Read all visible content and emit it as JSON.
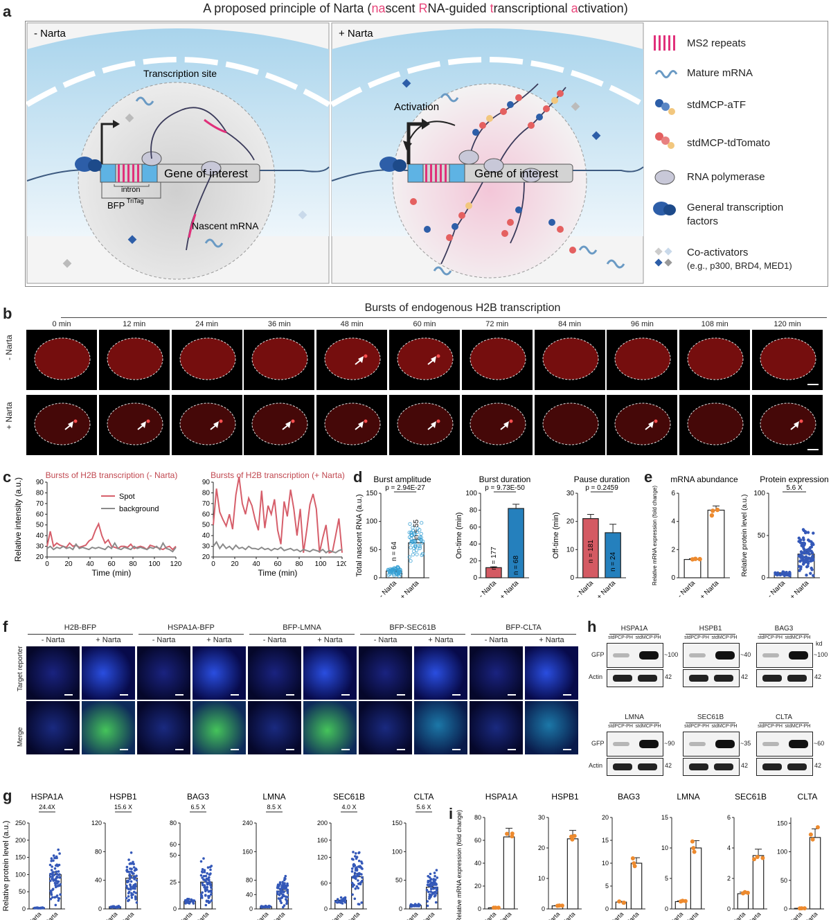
{
  "figure_title": {
    "prefix": "A proposed principle of Narta (",
    "parts": [
      {
        "text": "na",
        "color": "#e8457a"
      },
      {
        "text": "scent ",
        "color": "#222222"
      },
      {
        "text": "R",
        "color": "#e8457a"
      },
      {
        "text": "NA-guided ",
        "color": "#222222"
      },
      {
        "text": "t",
        "color": "#e8457a"
      },
      {
        "text": "ranscriptional ",
        "color": "#222222"
      },
      {
        "text": "a",
        "color": "#e8457a"
      },
      {
        "text": "ctivation)",
        "color": "#222222"
      }
    ]
  },
  "panel_labels": {
    "a": "a",
    "b": "b",
    "c": "c",
    "d": "d",
    "e": "e",
    "f": "f",
    "g": "g",
    "h": "h",
    "i": "i"
  },
  "panel_a": {
    "left": {
      "title": "- Narta",
      "transcription_site": "Transcription site",
      "gene": "Gene of interest",
      "intron": "intron",
      "bfp": "BFP",
      "bfp_sup": "TriTag",
      "nascent": "Nascent mRNA"
    },
    "right": {
      "title": "+ Narta",
      "activation": "Activation",
      "gene": "Gene of interest"
    },
    "legend": [
      {
        "icon": "ms2-icon",
        "label": "MS2 repeats"
      },
      {
        "icon": "mature-mrna-icon",
        "label": "Mature mRNA"
      },
      {
        "icon": "stdmcp-atf-icon",
        "label": "stdMCP-aTF"
      },
      {
        "icon": "stdmcp-tdtomato-icon",
        "label": "stdMCP-tdTomato"
      },
      {
        "icon": "rna-polymerase-icon",
        "label": "RNA polymerase"
      },
      {
        "icon": "gtf-icon",
        "label": "General transcription factors"
      },
      {
        "icon": "coactivator-icon",
        "label": "Co-activators",
        "sub": "(e.g., p300, BRD4, MED1)"
      }
    ],
    "colors": {
      "cytoplasm": "#b8dcef",
      "nucleus": "#e6e6e6",
      "ms2": "#e0307a",
      "gene": "#d0d0d0",
      "bfp": "#5eb3e4"
    }
  },
  "panel_b": {
    "title": "Bursts of endogenous H2B transcription",
    "times": [
      "0 min",
      "12 min",
      "24 min",
      "36 min",
      "48 min",
      "60 min",
      "72 min",
      "84 min",
      "96 min",
      "108 min",
      "120 min"
    ],
    "rows": [
      "- Narta",
      "+ Narta"
    ]
  },
  "panel_c": {
    "charts": [
      {
        "title": "Bursts of H2B transcription (- Narta)"
      },
      {
        "title": "Bursts of H2B transcription (+ Narta)"
      }
    ],
    "ylabel": "Relative intensity (a.u.)",
    "xlabel": "Time (min)",
    "legend": [
      "Spot",
      "background"
    ],
    "xticks": [
      "0",
      "20",
      "40",
      "60",
      "80",
      "100",
      "120"
    ],
    "yticks": [
      "20",
      "30",
      "40",
      "50",
      "60",
      "70",
      "80",
      "90"
    ]
  },
  "panel_d": {
    "charts": [
      {
        "title": "Burst amplitude",
        "ylabel": "Total nascent RNA  (a.u.)",
        "p": "p = 2.94E-27",
        "n": [
          "n = 64",
          "n = 55"
        ],
        "yticks": [
          "0",
          "50",
          "100",
          "150"
        ]
      },
      {
        "title": "Burst duration",
        "ylabel": "On-time (min)",
        "p": "p = 9.73E-50",
        "n": [
          "n = 177",
          "n = 68"
        ],
        "yticks": [
          "0",
          "20",
          "40",
          "60",
          "80",
          "100"
        ]
      },
      {
        "title": "Pause duration",
        "ylabel": "Off-time (min)",
        "p": "p = 0.2459",
        "n": [
          "n = 181",
          "n = 24"
        ],
        "yticks": [
          "0",
          "10",
          "20",
          "30"
        ]
      }
    ],
    "xcats": [
      "- Narta",
      "+ Narta"
    ]
  },
  "panel_e": {
    "charts": [
      {
        "title": "mRNA abundance",
        "ylabel": "Relative mRNA expression (fold change)",
        "yticks": [
          "0",
          "2",
          "4",
          "6"
        ]
      },
      {
        "title": "Protein expression",
        "ylabel": "Relative protein level (a.u.)",
        "fold": "5.6 X",
        "yticks": [
          "0",
          "50",
          "100"
        ]
      }
    ],
    "xcats": [
      "- Narta",
      "+ Narta"
    ]
  },
  "panel_f": {
    "groups": [
      "H2B-BFP",
      "HSPA1A-BFP",
      "BFP-LMNA",
      "BFP-SEC61B",
      "BFP-CLTA"
    ],
    "conds": [
      "- Narta",
      "+ Narta"
    ],
    "rows": [
      "Target reporter",
      "Merge"
    ]
  },
  "panel_h": {
    "blots": [
      {
        "gene": "HSPA1A",
        "kd": "~100"
      },
      {
        "gene": "HSPB1",
        "kd": "~40"
      },
      {
        "gene": "BAG3",
        "kd": "~100"
      },
      {
        "gene": "LMNA",
        "kd": "~90"
      },
      {
        "gene": "SEC61B",
        "kd": "~35"
      },
      {
        "gene": "CLTA",
        "kd": "~60"
      }
    ],
    "lanes": [
      "stdPCP-PH",
      "stdMCP-PH"
    ],
    "rows": [
      "GFP",
      "Actin"
    ],
    "actin_kd": "42",
    "kd_label": "kd"
  },
  "chart_data": [
    {
      "type": "line",
      "title": "Bursts of H2B transcription (- Narta)",
      "xlabel": "Time (min)",
      "ylabel": "Relative intensity (a.u.)",
      "xlim": [
        0,
        120
      ],
      "ylim": [
        20,
        90
      ],
      "series": [
        {
          "name": "Spot",
          "x": [
            0,
            3,
            6,
            9,
            12,
            15,
            18,
            21,
            24,
            27,
            30,
            33,
            36,
            39,
            42,
            45,
            48,
            51,
            54,
            57,
            60,
            63,
            66,
            69,
            72,
            75,
            78,
            81,
            84,
            87,
            90,
            93,
            96,
            99,
            102,
            105,
            108,
            111,
            114,
            117,
            120
          ],
          "values": [
            30,
            44,
            30,
            33,
            31,
            30,
            29,
            33,
            30,
            31,
            29,
            30,
            31,
            35,
            37,
            45,
            51,
            40,
            33,
            36,
            30,
            29,
            28,
            30,
            30,
            29,
            32,
            28,
            29,
            30,
            29,
            27,
            31,
            30,
            29,
            28,
            27,
            29,
            30,
            27,
            30
          ]
        },
        {
          "name": "background",
          "x": [
            0,
            3,
            6,
            9,
            12,
            15,
            18,
            21,
            24,
            27,
            30,
            33,
            36,
            39,
            42,
            45,
            48,
            51,
            54,
            57,
            60,
            63,
            66,
            69,
            72,
            75,
            78,
            81,
            84,
            87,
            90,
            93,
            96,
            99,
            102,
            105,
            108,
            111,
            114,
            117,
            120
          ],
          "values": [
            28,
            30,
            27,
            29,
            28,
            30,
            28,
            29,
            27,
            32,
            28,
            29,
            28,
            27,
            29,
            28,
            29,
            28,
            27,
            30,
            28,
            33,
            28,
            27,
            29,
            28,
            27,
            30,
            28,
            29,
            28,
            27,
            29,
            28,
            30,
            27,
            33,
            28,
            27,
            25,
            29
          ]
        }
      ]
    },
    {
      "type": "line",
      "title": "Bursts of H2B transcription (+ Narta)",
      "xlabel": "Time (min)",
      "ylabel": "Relative intensity (a.u.)",
      "xlim": [
        0,
        120
      ],
      "ylim": [
        20,
        90
      ],
      "series": [
        {
          "name": "Spot",
          "x": [
            0,
            3,
            6,
            9,
            12,
            15,
            18,
            21,
            24,
            27,
            30,
            33,
            36,
            39,
            42,
            45,
            48,
            51,
            54,
            57,
            60,
            63,
            66,
            69,
            72,
            75,
            78,
            81,
            84,
            87,
            90,
            93,
            96,
            99,
            102,
            105,
            108,
            111,
            114,
            117,
            120
          ],
          "values": [
            50,
            84,
            62,
            55,
            49,
            60,
            46,
            78,
            95,
            70,
            60,
            75,
            68,
            55,
            45,
            82,
            47,
            68,
            60,
            74,
            45,
            32,
            72,
            58,
            83,
            65,
            40,
            65,
            24,
            45,
            69,
            79,
            65,
            24,
            38,
            50,
            24,
            25,
            40,
            56,
            24
          ]
        },
        {
          "name": "background",
          "x": [
            0,
            3,
            6,
            9,
            12,
            15,
            18,
            21,
            24,
            27,
            30,
            33,
            36,
            39,
            42,
            45,
            48,
            51,
            54,
            57,
            60,
            63,
            66,
            69,
            72,
            75,
            78,
            81,
            84,
            87,
            90,
            93,
            96,
            99,
            102,
            105,
            108,
            111,
            114,
            117,
            120
          ],
          "values": [
            30,
            34,
            28,
            32,
            28,
            30,
            27,
            31,
            28,
            29,
            27,
            30,
            28,
            28,
            27,
            29,
            27,
            28,
            26,
            28,
            27,
            29,
            26,
            27,
            28,
            26,
            27,
            25,
            27,
            26,
            25,
            27,
            26,
            25,
            27,
            24,
            26,
            25,
            24,
            26,
            27
          ]
        }
      ]
    },
    {
      "type": "bar",
      "title": "Burst amplitude",
      "ylabel": "Total nascent RNA  (a.u.)",
      "categories": [
        "- Narta",
        "+ Narta"
      ],
      "values": [
        12,
        62
      ],
      "ylim": [
        0,
        150
      ]
    },
    {
      "type": "bar",
      "title": "Burst duration",
      "ylabel": "On-time (min)",
      "categories": [
        "- Narta",
        "+ Narta"
      ],
      "values": [
        12,
        82
      ],
      "ylim": [
        0,
        100
      ]
    },
    {
      "type": "bar",
      "title": "Pause duration",
      "ylabel": "Off-time (min)",
      "categories": [
        "- Narta",
        "+ Narta"
      ],
      "values": [
        21,
        16
      ],
      "ylim": [
        0,
        30
      ]
    },
    {
      "type": "bar",
      "title": "mRNA abundance",
      "ylabel": "Relative mRNA expression (fold change)",
      "categories": [
        "- Narta",
        "+ Narta"
      ],
      "values": [
        1.3,
        4.8
      ],
      "ylim": [
        0,
        6
      ]
    },
    {
      "type": "bar",
      "title": "Protein expression",
      "ylabel": "Relative protein level (a.u.)",
      "categories": [
        "- Narta",
        "+ Narta"
      ],
      "values": [
        5,
        28
      ],
      "ylim": [
        0,
        100
      ]
    },
    {
      "type": "bar",
      "title": "HSPA1A",
      "ylabel": "Relative protein level (a.u.)",
      "categories": [
        "- Narta",
        "+ Narta"
      ],
      "values": [
        3,
        100
      ],
      "fold": "24.4X",
      "yticks": [
        "0",
        "50",
        "100",
        "150",
        "200",
        "250"
      ],
      "ylim": [
        0,
        250
      ]
    },
    {
      "type": "bar",
      "title": "HSPB1",
      "categories": [
        "- Narta",
        "+ Narta"
      ],
      "values": [
        3,
        43
      ],
      "fold": "15.6 X",
      "yticks": [
        "0",
        "40",
        "80",
        "120"
      ],
      "ylim": [
        0,
        120
      ]
    },
    {
      "type": "bar",
      "title": "BAG3",
      "categories": [
        "- Narta",
        "+ Narta"
      ],
      "values": [
        7,
        25
      ],
      "fold": "6.5 X",
      "yticks": [
        "0",
        "25",
        "50",
        "60",
        "80"
      ],
      "ylim": [
        0,
        80
      ]
    },
    {
      "type": "bar",
      "title": "LMNA",
      "categories": [
        "- Narta",
        "+ Narta"
      ],
      "values": [
        6,
        50
      ],
      "fold": "8.5 X",
      "yticks": [
        "0",
        "40",
        "80",
        "160",
        "240"
      ],
      "ylim": [
        0,
        240
      ]
    },
    {
      "type": "bar",
      "title": "SEC61B",
      "categories": [
        "- Narta",
        "+ Narta"
      ],
      "values": [
        20,
        75
      ],
      "fold": "4.0 X",
      "yticks": [
        "0",
        "60",
        "120",
        "160",
        "200"
      ],
      "ylim": [
        0,
        200
      ]
    },
    {
      "type": "bar",
      "title": "CLTA",
      "categories": [
        "- Narta",
        "+ Narta"
      ],
      "values": [
        6,
        38
      ],
      "fold": "5.6 X",
      "yticks": [
        "0",
        "50",
        "100",
        "150"
      ],
      "ylim": [
        0,
        150
      ]
    },
    {
      "type": "bar",
      "title": "HSPA1A",
      "ylabel": "Relative mRNA expression (fold change)",
      "categories": [
        "- Narta",
        "+ Narta"
      ],
      "values": [
        1,
        63
      ],
      "yticks": [
        "0",
        "20",
        "40",
        "60",
        "80"
      ],
      "ylim": [
        0,
        80
      ]
    },
    {
      "type": "bar",
      "title": "HSPB1",
      "categories": [
        "- Narta",
        "+ Narta"
      ],
      "values": [
        1,
        23
      ],
      "yticks": [
        "0",
        "10",
        "20",
        "30"
      ],
      "ylim": [
        0,
        30
      ]
    },
    {
      "type": "bar",
      "title": "BAG3",
      "categories": [
        "- Narta",
        "+ Narta"
      ],
      "values": [
        1.5,
        10
      ],
      "yticks": [
        "0",
        "5",
        "10",
        "15",
        "20"
      ],
      "ylim": [
        0,
        20
      ]
    },
    {
      "type": "bar",
      "title": "LMNA",
      "categories": [
        "- Narta",
        "+ Narta"
      ],
      "values": [
        1.2,
        10
      ],
      "yticks": [
        "0",
        "5",
        "10",
        "15"
      ],
      "ylim": [
        0,
        15
      ]
    },
    {
      "type": "bar",
      "title": "SEC61B",
      "categories": [
        "- Narta",
        "+ Narta"
      ],
      "values": [
        1,
        3.5
      ],
      "yticks": [
        "0",
        "2",
        "4",
        "6"
      ],
      "ylim": [
        0,
        6
      ]
    },
    {
      "type": "bar",
      "title": "CLTA",
      "categories": [
        "- Narta",
        "+ Narta"
      ],
      "values": [
        1,
        125
      ],
      "yticks": [
        "0",
        "50",
        "100",
        "150"
      ],
      "ylim": [
        0,
        160
      ]
    }
  ]
}
